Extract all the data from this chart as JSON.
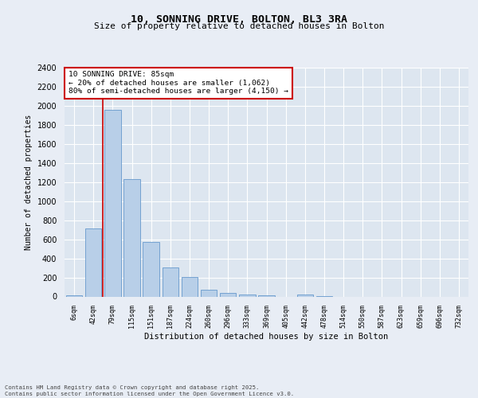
{
  "title1": "10, SONNING DRIVE, BOLTON, BL3 3RA",
  "title2": "Size of property relative to detached houses in Bolton",
  "xlabel": "Distribution of detached houses by size in Bolton",
  "ylabel": "Number of detached properties",
  "categories": [
    "6sqm",
    "42sqm",
    "79sqm",
    "115sqm",
    "151sqm",
    "187sqm",
    "224sqm",
    "260sqm",
    "296sqm",
    "333sqm",
    "369sqm",
    "405sqm",
    "442sqm",
    "478sqm",
    "514sqm",
    "550sqm",
    "587sqm",
    "623sqm",
    "659sqm",
    "696sqm",
    "732sqm"
  ],
  "values": [
    10,
    710,
    1960,
    1235,
    575,
    305,
    205,
    75,
    40,
    25,
    10,
    0,
    25,
    5,
    0,
    0,
    0,
    0,
    0,
    0,
    0
  ],
  "bar_color": "#b8cfe8",
  "bar_edge_color": "#6699cc",
  "background_color": "#dde6f0",
  "grid_color": "#ffffff",
  "annotation_title": "10 SONNING DRIVE: 85sqm",
  "annotation_line1": "← 20% of detached houses are smaller (1,062)",
  "annotation_line2": "80% of semi-detached houses are larger (4,150) →",
  "annotation_box_facecolor": "#ffffff",
  "annotation_box_edgecolor": "#cc0000",
  "redline_color": "#cc0000",
  "ylim": [
    0,
    2400
  ],
  "yticks": [
    0,
    200,
    400,
    600,
    800,
    1000,
    1200,
    1400,
    1600,
    1800,
    2000,
    2200,
    2400
  ],
  "footer1": "Contains HM Land Registry data © Crown copyright and database right 2025.",
  "footer2": "Contains public sector information licensed under the Open Government Licence v3.0.",
  "fig_bg": "#e8edf5"
}
